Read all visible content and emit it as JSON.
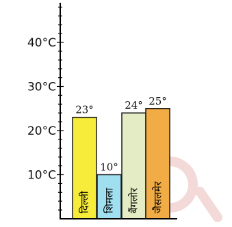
{
  "chart_data": {
    "type": "bar",
    "categories": [
      "दिल्ली",
      "शिमला",
      "बैंगलोर",
      "जैसलमेर"
    ],
    "values": [
      23,
      10,
      24,
      25
    ],
    "value_labels": [
      "23°",
      "10°",
      "24°",
      "25°"
    ],
    "bar_colors": [
      "#f7ec3a",
      "#9fdff0",
      "#e3ecc4",
      "#f2ac45"
    ],
    "ylim": [
      0,
      48
    ],
    "yticks": [
      10,
      20,
      30,
      40
    ],
    "ytick_labels": [
      "10°C",
      "20°C",
      "30°C",
      "40°C"
    ],
    "minor_step": 2,
    "grid": false,
    "title": "",
    "xlabel": "",
    "ylabel": ""
  }
}
